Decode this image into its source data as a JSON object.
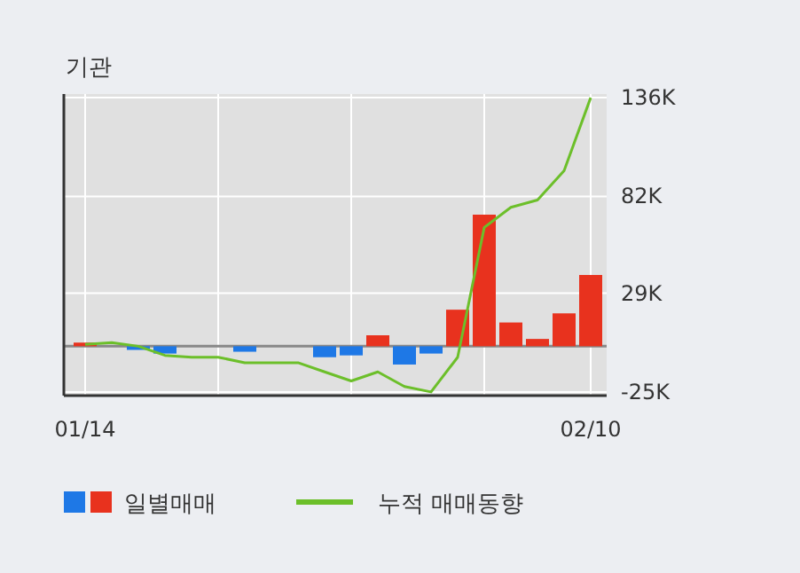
{
  "chart_data": {
    "type": "bar",
    "title": "기관",
    "categories": [
      "01/14",
      null,
      null,
      null,
      null,
      null,
      null,
      null,
      null,
      null,
      null,
      null,
      null,
      null,
      null,
      null,
      null,
      null,
      null,
      "02/10"
    ],
    "series": [
      {
        "name": "일별매매",
        "values": [
          2,
          0,
          -2,
          -4,
          0,
          0,
          -3,
          0,
          0,
          -6,
          -5,
          6,
          -10,
          -4,
          20,
          72,
          13,
          4,
          18,
          39
        ],
        "colors": [
          "#e8321e",
          "#e8321e",
          "#1e78e6",
          "#1e78e6",
          "#e8321e",
          "#e8321e",
          "#1e78e6",
          "#e8321e",
          "#e8321e",
          "#1e78e6",
          "#1e78e6",
          "#e8321e",
          "#1e78e6",
          "#1e78e6",
          "#e8321e",
          "#e8321e",
          "#e8321e",
          "#e8321e",
          "#e8321e",
          "#e8321e"
        ]
      },
      {
        "name": "누적 매매동향",
        "type": "line",
        "color": "#6cbf2a",
        "values": [
          1,
          2,
          0,
          -5,
          -6,
          -6,
          -9,
          -9,
          -9,
          -14,
          -19,
          -14,
          -22,
          -25,
          -6,
          65,
          76,
          80,
          96,
          136
        ]
      }
    ],
    "ylim": [
      -27,
      138
    ],
    "yticks": [
      {
        "value": 136,
        "label": "136K"
      },
      {
        "value": 82,
        "label": "82K"
      },
      {
        "value": 29,
        "label": "29K"
      },
      {
        "value": -25,
        "label": "-25K"
      }
    ],
    "ref_lines": [
      {
        "axis": "y",
        "value": 0,
        "color": "#888888"
      }
    ],
    "grid": true,
    "legend": "bottom"
  }
}
